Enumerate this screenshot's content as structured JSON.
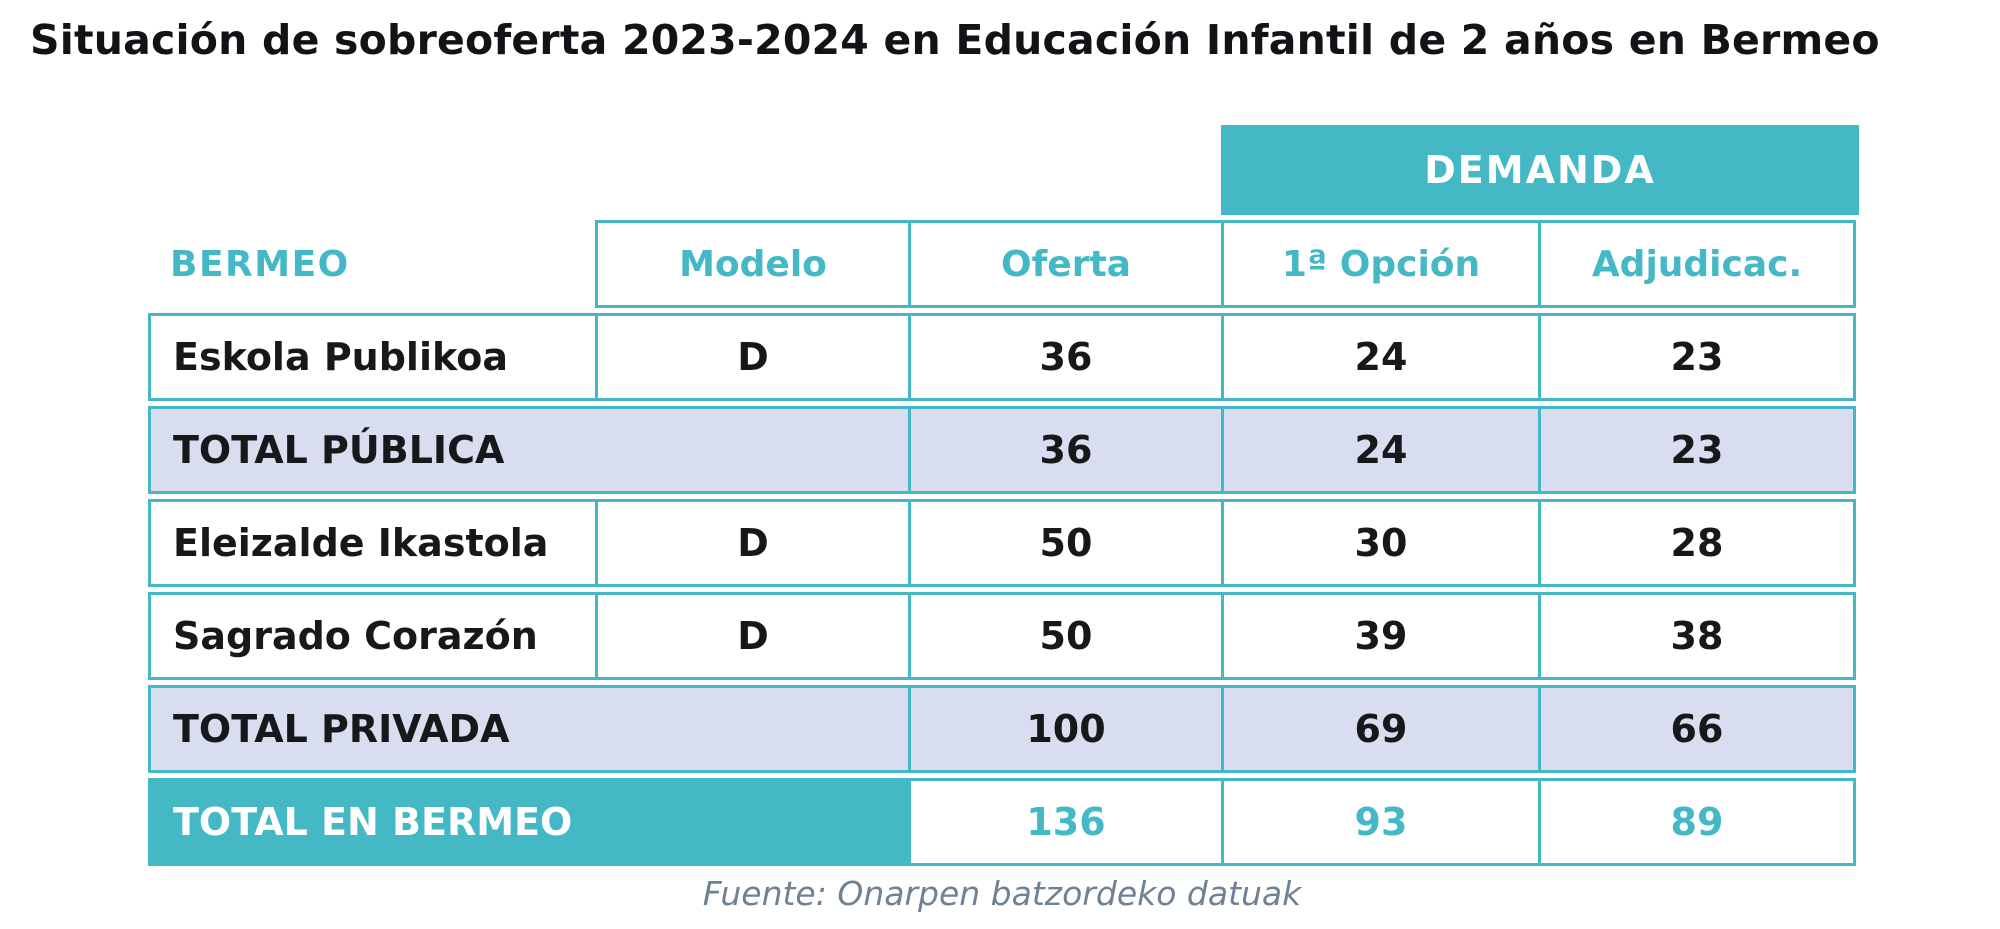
{
  "title": "Situación de sobreoferta 2023-2024 en Educación Infantil de 2 años en Bermeo",
  "source": "Fuente: Onarpen batzordeko datuak",
  "colors": {
    "teal_accent": "#45b8c6",
    "subtotal_lavender": "#d8ddf0",
    "dark_text": "#17181a",
    "white_text": "#ffffff",
    "source_text": "#6f8195"
  },
  "chart_data": {
    "type": "table",
    "title": "Situación de sobreoferta 2023-2024 en Educación Infantil de 2 años en Bermeo",
    "corner_label": "BERMEO",
    "demanda_group_header": "DEMANDA",
    "columns": [
      "Modelo",
      "Oferta",
      "1ª Opción",
      "Adjudicac."
    ],
    "demanda_columns": [
      "1ª Opción",
      "Adjudicac."
    ],
    "rows": [
      {
        "type": "school",
        "name": "Eskola Publikoa",
        "modelo": "D",
        "oferta": "36",
        "primera_opcion": "24",
        "adjudicac": "23"
      },
      {
        "type": "subtotal",
        "name": "TOTAL PÚBLICA",
        "oferta": "36",
        "primera_opcion": "24",
        "adjudicac": "23"
      },
      {
        "type": "school",
        "name": "Eleizalde Ikastola",
        "modelo": "D",
        "oferta": "50",
        "primera_opcion": "30",
        "adjudicac": "28"
      },
      {
        "type": "school",
        "name": "Sagrado Corazón",
        "modelo": "D",
        "oferta": "50",
        "primera_opcion": "39",
        "adjudicac": "38"
      },
      {
        "type": "subtotal",
        "name": "TOTAL PRIVADA",
        "oferta": "100",
        "primera_opcion": "69",
        "adjudicac": "66"
      },
      {
        "type": "grand_total",
        "name": "TOTAL EN BERMEO",
        "oferta": "136",
        "primera_opcion": "93",
        "adjudicac": "89"
      }
    ],
    "source": "Fuente: Onarpen batzordeko datuak"
  }
}
